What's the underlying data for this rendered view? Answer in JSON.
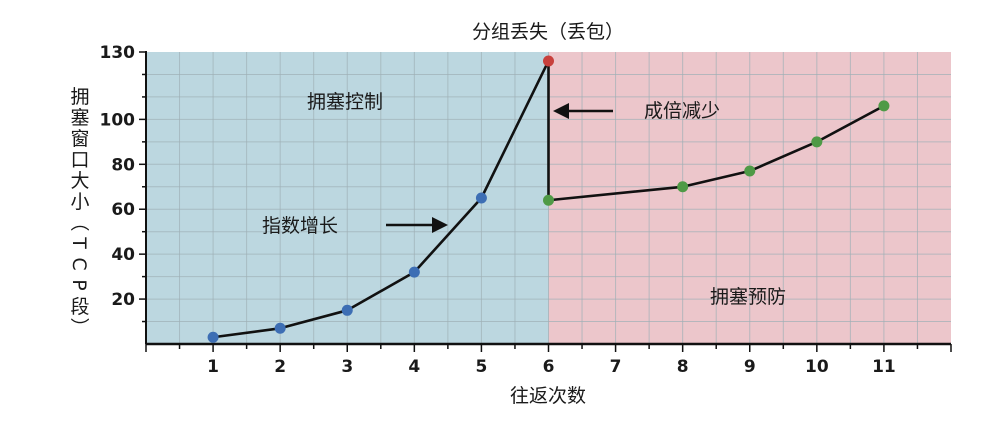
{
  "chart_data": {
    "type": "line",
    "title": "分组丢失（丢包）",
    "xlabel": "往返次数",
    "ylabel": "拥塞窗口大小（TCP段）",
    "x_ticks": [
      1,
      2,
      3,
      4,
      5,
      6,
      7,
      8,
      9,
      10,
      11
    ],
    "y_ticks": [
      20,
      40,
      60,
      80,
      100,
      130
    ],
    "xlim": [
      0,
      12
    ],
    "ylim": [
      0,
      130
    ],
    "grid": true,
    "regions": [
      {
        "label": "拥塞控制",
        "x_range": [
          0,
          6
        ],
        "color": "#bcd7e0"
      },
      {
        "label": "拥塞预防",
        "x_range": [
          6,
          12
        ],
        "color": "#ecc6cb"
      }
    ],
    "series": [
      {
        "points": [
          {
            "x": 1,
            "y": 3,
            "color": "#3d6eb4"
          },
          {
            "x": 2,
            "y": 7,
            "color": "#3d6eb4"
          },
          {
            "x": 3,
            "y": 15,
            "color": "#3d6eb4"
          },
          {
            "x": 4,
            "y": 32,
            "color": "#3d6eb4"
          },
          {
            "x": 5,
            "y": 65,
            "color": "#3d6eb4"
          },
          {
            "x": 6,
            "y": 126,
            "color": "#c8403c"
          },
          {
            "x": 6,
            "y": 64,
            "color": "#4f9a46"
          },
          {
            "x": 8,
            "y": 70,
            "color": "#4f9a46"
          },
          {
            "x": 9,
            "y": 77,
            "color": "#4f9a46"
          },
          {
            "x": 10,
            "y": 90,
            "color": "#4f9a46"
          },
          {
            "x": 11,
            "y": 106,
            "color": "#4f9a46"
          }
        ]
      }
    ],
    "annotations": [
      {
        "id": "exp",
        "text": "指数增长"
      },
      {
        "id": "half",
        "text": "成倍减少"
      }
    ]
  }
}
